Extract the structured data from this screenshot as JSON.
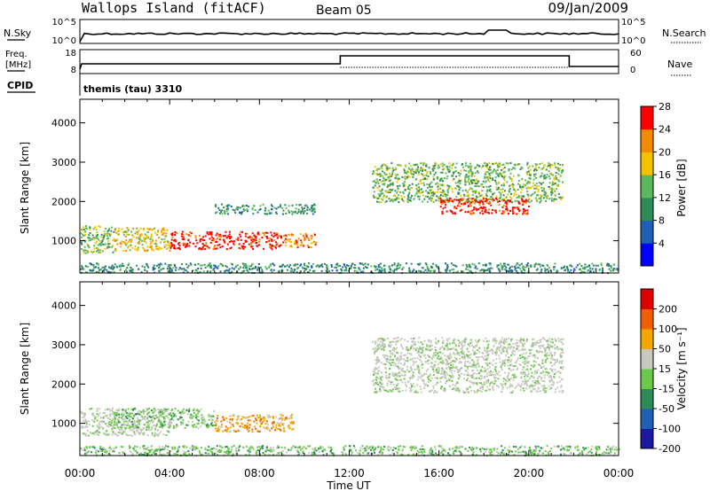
{
  "header": {
    "station": "Wallops Island (fitACF)",
    "beam": "Beam 05",
    "date": "09/Jan/2009"
  },
  "strip_labels": {
    "nsky": "N.Sky",
    "nsearch": "N.Search",
    "freq_line1": "Freq.",
    "freq_line2": "[MHz]",
    "cpid": "CPID",
    "nave": "Nave",
    "cpid_value": "themis (tau) 3310",
    "nsky_ticks": [
      "10^5",
      "10^0"
    ],
    "nsearch_ticks": [
      "10^5",
      "10^0"
    ],
    "freq_ticks": [
      "18",
      "8"
    ],
    "nave_ticks": [
      "60",
      "0"
    ]
  },
  "chart_data": [
    {
      "type": "heatmap",
      "name": "power-panel",
      "ylabel": "Slant Range [km]",
      "xlabel": "Time UT",
      "x_ticks": [
        "00:00",
        "04:00",
        "08:00",
        "12:00",
        "16:00",
        "20:00",
        "00:00"
      ],
      "x_range_hours": [
        0,
        24
      ],
      "ylim": [
        180,
        4600
      ],
      "y_ticks": [
        1000,
        2000,
        3000,
        4000
      ],
      "colorbar": {
        "label": "Power [dB]",
        "ticks": [
          4,
          8,
          12,
          16,
          20,
          24,
          28
        ],
        "range": [
          0,
          32
        ],
        "colors": [
          "#0000ff",
          "#1f5fb4",
          "#2e8b57",
          "#5cb85c",
          "#f2c200",
          "#f58a00",
          "#ff0000"
        ]
      },
      "regions": [
        {
          "t": [
            0.0,
            1.5
          ],
          "r": [
            700,
            1400
          ],
          "level": 3
        },
        {
          "t": [
            1.5,
            4.0
          ],
          "r": [
            750,
            1350
          ],
          "level": 4
        },
        {
          "t": [
            4.0,
            9.0
          ],
          "r": [
            800,
            1250
          ],
          "level": 6
        },
        {
          "t": [
            9.0,
            10.5
          ],
          "r": [
            850,
            1200
          ],
          "level": 5
        },
        {
          "t": [
            6.0,
            10.5
          ],
          "r": [
            1700,
            1950
          ],
          "level": 2
        },
        {
          "t": [
            13.0,
            21.5
          ],
          "r": [
            2000,
            3000
          ],
          "level": 3
        },
        {
          "t": [
            16.0,
            20.0
          ],
          "r": [
            1700,
            2100
          ],
          "level": 6
        },
        {
          "t": [
            0.0,
            24.0
          ],
          "r": [
            200,
            450
          ],
          "level": 2
        }
      ]
    },
    {
      "type": "heatmap",
      "name": "velocity-panel",
      "ylabel": "Slant Range [km]",
      "xlabel": "Time UT",
      "x_ticks": [
        "00:00",
        "04:00",
        "08:00",
        "12:00",
        "16:00",
        "20:00",
        "00:00"
      ],
      "x_range_hours": [
        0,
        24
      ],
      "ylim": [
        180,
        4600
      ],
      "y_ticks": [
        1000,
        2000,
        3000,
        4000
      ],
      "colorbar": {
        "label": "Velocity [m s^-1]",
        "ticks": [
          "200",
          "100",
          "50",
          "15",
          "-15",
          "-50",
          "-100",
          "-200"
        ],
        "colors": [
          "#1a1aa0",
          "#1f5fb4",
          "#2e8b57",
          "#6cc84a",
          "#c8c8c0",
          "#f2a800",
          "#f06000",
          "#e00000"
        ]
      },
      "regions": [
        {
          "t": [
            0.0,
            4.0
          ],
          "r": [
            700,
            1400
          ],
          "class": "gray"
        },
        {
          "t": [
            1.5,
            6.0
          ],
          "r": [
            900,
            1400
          ],
          "class": "green"
        },
        {
          "t": [
            6.0,
            9.5
          ],
          "r": [
            800,
            1250
          ],
          "class": "orange"
        },
        {
          "t": [
            13.0,
            21.5
          ],
          "r": [
            1800,
            3200
          ],
          "class": "gray"
        },
        {
          "t": [
            0.0,
            24.0
          ],
          "r": [
            200,
            450
          ],
          "class": "green"
        }
      ]
    }
  ],
  "axes": {
    "time_label": "Time UT",
    "ylabel": "Slant Range [km]",
    "power_label": "Power [dB]",
    "velocity_label": "Velocity [m s⁻¹]"
  }
}
